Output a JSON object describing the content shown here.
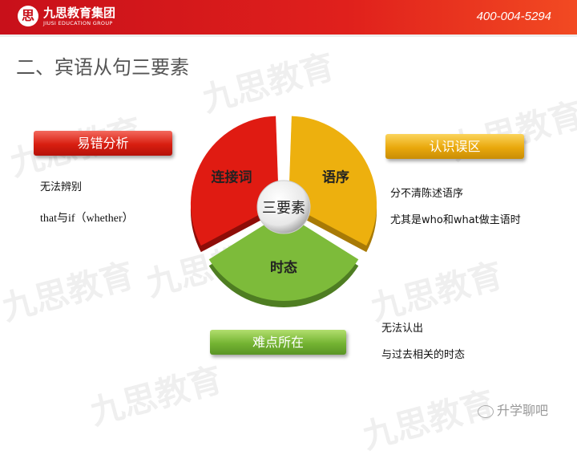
{
  "header": {
    "logo_mark": "思",
    "logo_cn": "九思教育集团",
    "logo_en": "JIUSI EDUCATION GROUP",
    "phone": "400-004-5294"
  },
  "title": "二、宾语从句三要素",
  "watermark": "九思教育",
  "diagram": {
    "center": "三要素",
    "slices": [
      {
        "label": "连接词",
        "color": "#e01b12"
      },
      {
        "label": "语序",
        "color": "#edb00e"
      },
      {
        "label": "时态",
        "color": "#7dbb3a"
      }
    ]
  },
  "boxes": {
    "errors": {
      "label": "易错分析",
      "items": [
        "无法辨别",
        "that与if（whether）"
      ]
    },
    "misconceptions": {
      "label": "认识误区",
      "items": [
        "分不清陈述语序",
        "尤其是who和what做主语时"
      ]
    },
    "difficulties": {
      "label": "难点所在",
      "items": [
        "无法认出",
        "与过去相关的时态"
      ]
    }
  },
  "footer": {
    "icon": "wechat-icon",
    "label": "升学聊吧"
  }
}
